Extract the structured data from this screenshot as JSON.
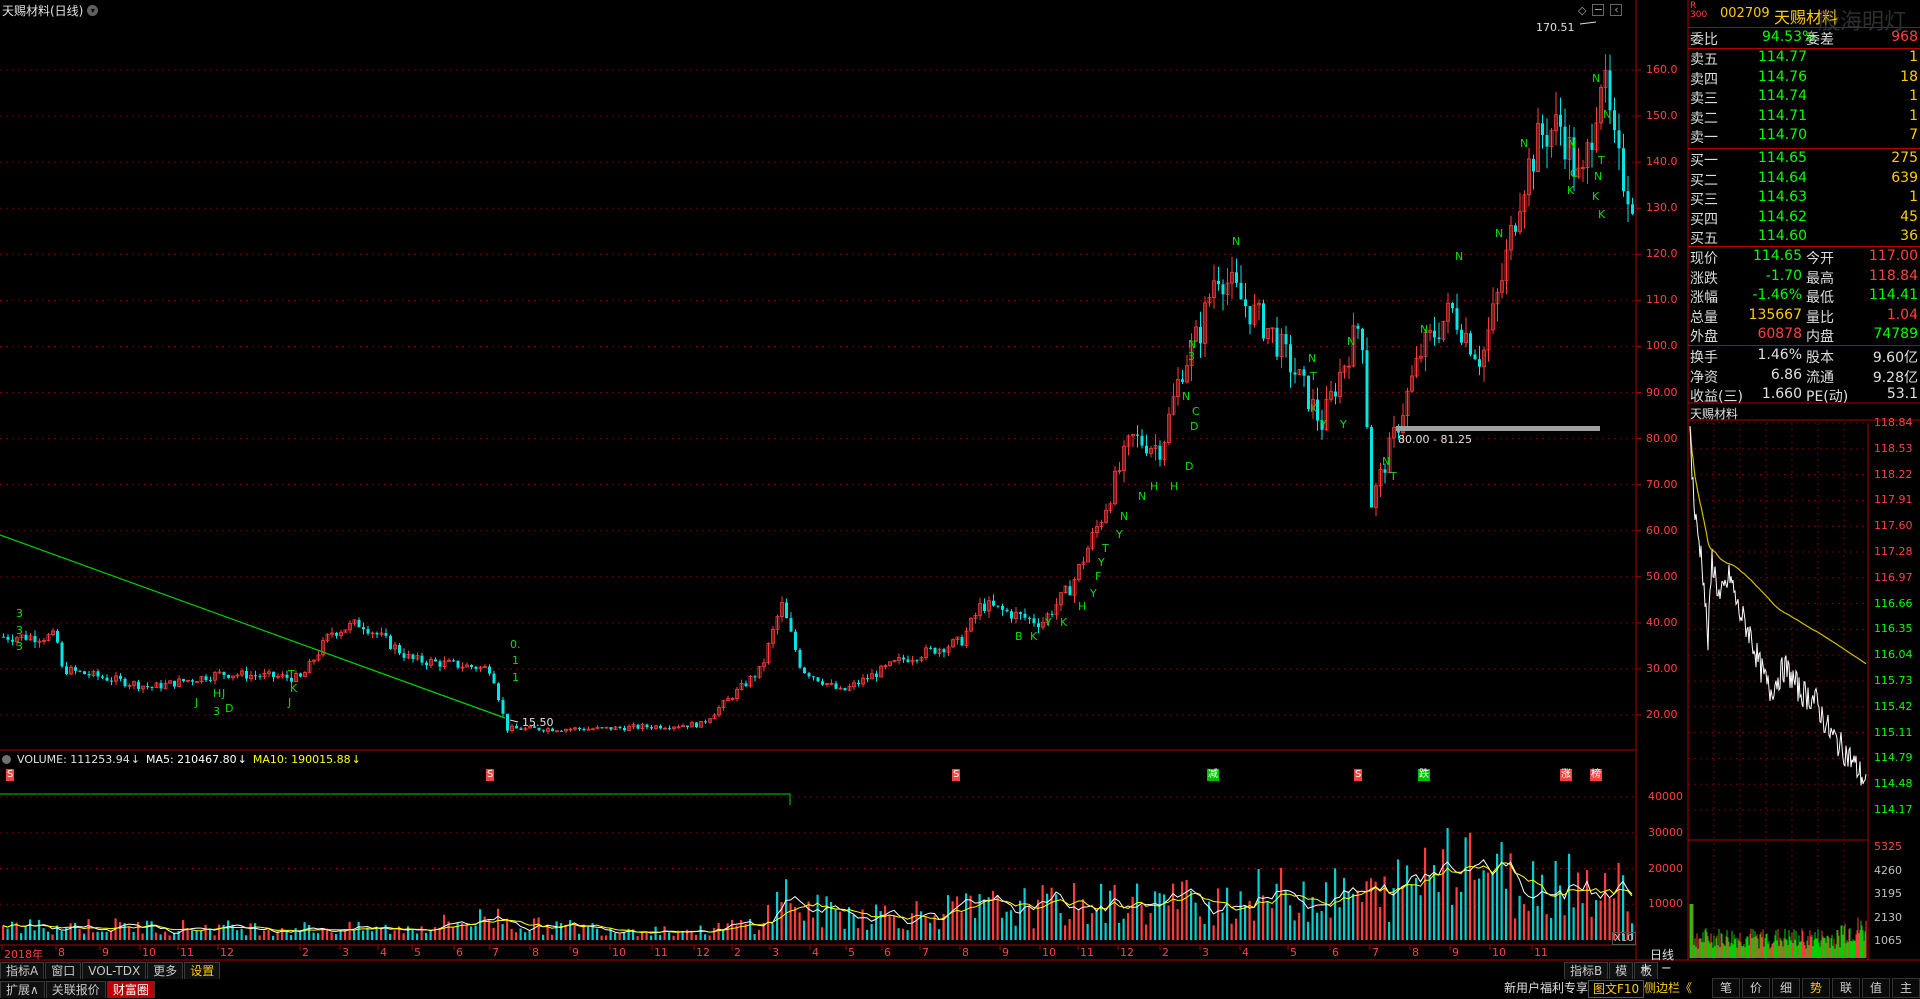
{
  "window": {
    "title": "天赐材料(日线)"
  },
  "main_chart": {
    "high_label": "170.51",
    "low_label": "15.50",
    "range_label": "80.00 - 81.25",
    "price_ticks": [
      "160.0",
      "150.0",
      "140.0",
      "130.0",
      "120.0",
      "110.0",
      "100.0",
      "90.00",
      "80.00",
      "70.00",
      "60.00",
      "50.00",
      "40.00",
      "30.00",
      "20.00"
    ]
  },
  "event_markers": [
    "S",
    "S",
    "减",
    "S",
    "跌",
    "涨",
    "榜"
  ],
  "volume": {
    "label": "VOLUME: 111253.94",
    "ma5": "MA5: 210467.80",
    "ma10": "MA10: 190015.88",
    "ticks": [
      "40000",
      "30000",
      "20000",
      "10000"
    ],
    "scale": "X10",
    "colors": {
      "volume": "#e0e0e0",
      "ma5": "#ffffff",
      "ma10": "#ffff00"
    }
  },
  "xaxis": {
    "labels": [
      "2018年",
      "8",
      "9",
      "10",
      "11",
      "12",
      "2",
      "3",
      "4",
      "5",
      "6",
      "7",
      "8",
      "9",
      "10",
      "11",
      "12",
      "2",
      "3",
      "4",
      "5",
      "6",
      "7",
      "8",
      "9",
      "10",
      "11",
      "12",
      "2",
      "3",
      "4",
      "5",
      "6",
      "7",
      "8",
      "9",
      "10",
      "11"
    ],
    "period": "日线"
  },
  "bottom_tabs_row1": [
    "指标A",
    "窗口",
    "VOL-TDX",
    "更多",
    "设置"
  ],
  "bottom_tabs_row2": [
    "扩展∧",
    "关联报价",
    "财富圈"
  ],
  "indicator_b": [
    "指标B",
    "模",
    "板"
  ],
  "quote": {
    "code": "002709",
    "name": "天赐材料",
    "weibi": {
      "label": "委比",
      "value": "94.53%",
      "label2": "委差",
      "value2": "968"
    },
    "sell": [
      {
        "label": "卖五",
        "price": "114.77",
        "vol": "1"
      },
      {
        "label": "卖四",
        "price": "114.76",
        "vol": "18"
      },
      {
        "label": "卖三",
        "price": "114.74",
        "vol": "1"
      },
      {
        "label": "卖二",
        "price": "114.71",
        "vol": "1"
      },
      {
        "label": "卖一",
        "price": "114.70",
        "vol": "7"
      }
    ],
    "buy": [
      {
        "label": "买一",
        "price": "114.65",
        "vol": "275"
      },
      {
        "label": "买二",
        "price": "114.64",
        "vol": "639"
      },
      {
        "label": "买三",
        "price": "114.63",
        "vol": "1"
      },
      {
        "label": "买四",
        "price": "114.62",
        "vol": "45"
      },
      {
        "label": "买五",
        "price": "114.60",
        "vol": "36"
      }
    ],
    "stats": [
      {
        "l1": "现价",
        "v1": "114.65",
        "l2": "今开",
        "v2": "117.00"
      },
      {
        "l1": "涨跌",
        "v1": "-1.70",
        "l2": "最高",
        "v2": "118.84"
      },
      {
        "l1": "涨幅",
        "v1": "-1.46%",
        "l2": "最低",
        "v2": "114.41"
      },
      {
        "l1": "总量",
        "v1": "135667",
        "l2": "量比",
        "v2": "1.04"
      },
      {
        "l1": "外盘",
        "v1": "60878",
        "l2": "内盘",
        "v2": "74789"
      }
    ],
    "stats2": [
      {
        "l1": "换手",
        "v1": "1.46%",
        "l2": "股本",
        "v2": "9.60亿"
      },
      {
        "l1": "净资",
        "v1": "6.86",
        "l2": "流通",
        "v2": "9.28亿"
      },
      {
        "l1": "收益(三)",
        "v1": "1.660",
        "l2": "PE(动)",
        "v2": "53.1"
      }
    ]
  },
  "intraday": {
    "title": "天赐材料",
    "price_ticks": [
      "118.84",
      "118.53",
      "118.22",
      "117.91",
      "117.60",
      "117.28",
      "116.97",
      "116.66",
      "116.35",
      "116.04",
      "115.73",
      "115.42",
      "115.11",
      "114.79",
      "114.48",
      "114.17"
    ],
    "vol_ticks": [
      "5325",
      "4260",
      "3195",
      "2130",
      "1065"
    ]
  },
  "right_tabs": [
    "笔",
    "价",
    "细",
    "势",
    "联",
    "值",
    "主"
  ],
  "ads": {
    "left": "新用户福利专享",
    "mid": "图文F10",
    "right": "侧边栏《"
  }
}
